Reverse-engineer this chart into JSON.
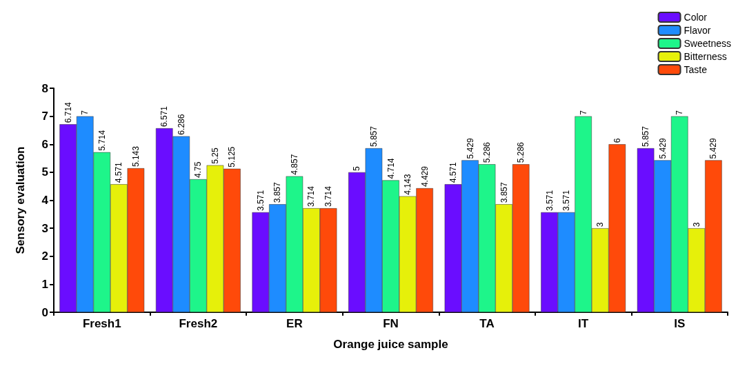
{
  "chart_data": {
    "type": "bar",
    "xlabel": "Orange juice sample",
    "ylabel": "Sensory evaluation",
    "categories": [
      "Fresh1",
      "Fresh2",
      "ER",
      "FN",
      "TA",
      "IT",
      "IS"
    ],
    "series": [
      {
        "name": "Color",
        "color": "#6a0dff",
        "values": [
          6.714,
          6.571,
          3.571,
          5,
          4.571,
          3.571,
          5.857
        ]
      },
      {
        "name": "Flavor",
        "color": "#1e8cff",
        "values": [
          7,
          6.286,
          3.857,
          5.857,
          5.429,
          3.571,
          5.429
        ]
      },
      {
        "name": "Sweetness",
        "color": "#1ef58a",
        "values": [
          5.714,
          4.75,
          4.857,
          4.714,
          5.286,
          7,
          7
        ]
      },
      {
        "name": "Bitterness",
        "color": "#e6f00a",
        "values": [
          4.571,
          5.25,
          3.714,
          4.143,
          3.857,
          3,
          3
        ]
      },
      {
        "name": "Taste",
        "color": "#ff4a0a",
        "values": [
          5.143,
          5.125,
          3.714,
          4.429,
          5.286,
          6,
          5.429
        ]
      }
    ],
    "ylim": [
      0,
      8
    ],
    "yticks": [
      0,
      1,
      2,
      3,
      4,
      5,
      6,
      7,
      8
    ],
    "grid": false,
    "legend": "top right",
    "data_labels": true
  }
}
